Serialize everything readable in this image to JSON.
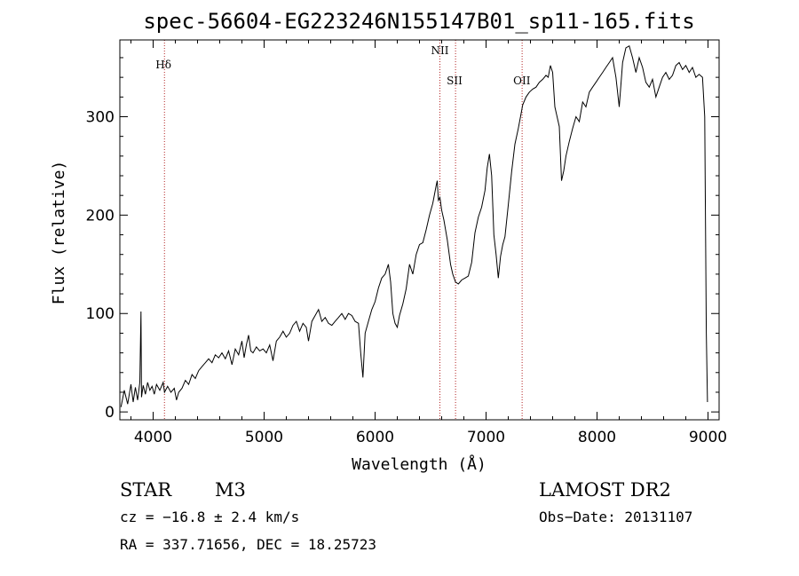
{
  "chart_data": {
    "type": "line",
    "title": "spec-56604-EG223246N155147B01_sp11-165.fits",
    "xlabel": "Wavelength (Å)",
    "ylabel": "Flux (relative)",
    "xlim": [
      3700,
      9100
    ],
    "ylim": [
      -8,
      378
    ],
    "x_ticks": [
      4000,
      5000,
      6000,
      7000,
      8000,
      9000
    ],
    "y_ticks": [
      0,
      100,
      200,
      300
    ],
    "grid": false,
    "line_color": "#000000",
    "marker_color": "#b22222",
    "spectral_lines": [
      {
        "name": "Hδ",
        "wavelength": 4102,
        "label_row": 0
      },
      {
        "name": "NII",
        "wavelength": 6584,
        "label_row": 1
      },
      {
        "name": "SII",
        "wavelength": 6725,
        "label_row": 2
      },
      {
        "name": "OII",
        "wavelength": 7325,
        "label_row": 2
      }
    ],
    "series": [
      {
        "points": [
          [
            3710,
            5
          ],
          [
            3740,
            22
          ],
          [
            3770,
            8
          ],
          [
            3800,
            28
          ],
          [
            3820,
            10
          ],
          [
            3840,
            25
          ],
          [
            3860,
            12
          ],
          [
            3880,
            30
          ],
          [
            3890,
            102
          ],
          [
            3895,
            15
          ],
          [
            3910,
            27
          ],
          [
            3930,
            18
          ],
          [
            3950,
            30
          ],
          [
            3970,
            22
          ],
          [
            3990,
            26
          ],
          [
            4010,
            18
          ],
          [
            4030,
            28
          ],
          [
            4060,
            22
          ],
          [
            4090,
            30
          ],
          [
            4102,
            20
          ],
          [
            4130,
            26
          ],
          [
            4160,
            20
          ],
          [
            4190,
            24
          ],
          [
            4210,
            12
          ],
          [
            4230,
            20
          ],
          [
            4260,
            24
          ],
          [
            4290,
            32
          ],
          [
            4320,
            28
          ],
          [
            4350,
            38
          ],
          [
            4380,
            34
          ],
          [
            4410,
            42
          ],
          [
            4440,
            46
          ],
          [
            4470,
            50
          ],
          [
            4500,
            54
          ],
          [
            4530,
            50
          ],
          [
            4560,
            58
          ],
          [
            4590,
            55
          ],
          [
            4620,
            60
          ],
          [
            4650,
            54
          ],
          [
            4680,
            62
          ],
          [
            4710,
            48
          ],
          [
            4740,
            64
          ],
          [
            4770,
            58
          ],
          [
            4800,
            72
          ],
          [
            4820,
            55
          ],
          [
            4840,
            68
          ],
          [
            4860,
            78
          ],
          [
            4880,
            62
          ],
          [
            4900,
            60
          ],
          [
            4930,
            66
          ],
          [
            4960,
            62
          ],
          [
            4990,
            64
          ],
          [
            5020,
            60
          ],
          [
            5050,
            68
          ],
          [
            5080,
            52
          ],
          [
            5110,
            72
          ],
          [
            5140,
            76
          ],
          [
            5170,
            82
          ],
          [
            5200,
            76
          ],
          [
            5230,
            80
          ],
          [
            5260,
            88
          ],
          [
            5290,
            92
          ],
          [
            5320,
            82
          ],
          [
            5350,
            90
          ],
          [
            5380,
            86
          ],
          [
            5400,
            72
          ],
          [
            5430,
            92
          ],
          [
            5460,
            98
          ],
          [
            5490,
            104
          ],
          [
            5520,
            92
          ],
          [
            5550,
            96
          ],
          [
            5580,
            90
          ],
          [
            5610,
            88
          ],
          [
            5640,
            92
          ],
          [
            5670,
            96
          ],
          [
            5700,
            100
          ],
          [
            5730,
            94
          ],
          [
            5760,
            100
          ],
          [
            5790,
            98
          ],
          [
            5820,
            92
          ],
          [
            5850,
            90
          ],
          [
            5870,
            60
          ],
          [
            5890,
            35
          ],
          [
            5910,
            80
          ],
          [
            5940,
            92
          ],
          [
            5970,
            104
          ],
          [
            6000,
            112
          ],
          [
            6030,
            126
          ],
          [
            6060,
            136
          ],
          [
            6090,
            140
          ],
          [
            6120,
            150
          ],
          [
            6140,
            132
          ],
          [
            6160,
            100
          ],
          [
            6180,
            90
          ],
          [
            6200,
            86
          ],
          [
            6220,
            98
          ],
          [
            6250,
            110
          ],
          [
            6280,
            125
          ],
          [
            6310,
            150
          ],
          [
            6340,
            140
          ],
          [
            6370,
            160
          ],
          [
            6400,
            170
          ],
          [
            6430,
            172
          ],
          [
            6460,
            185
          ],
          [
            6490,
            200
          ],
          [
            6520,
            212
          ],
          [
            6550,
            230
          ],
          [
            6560,
            235
          ],
          [
            6570,
            215
          ],
          [
            6584,
            218
          ],
          [
            6600,
            205
          ],
          [
            6620,
            195
          ],
          [
            6650,
            175
          ],
          [
            6680,
            150
          ],
          [
            6700,
            140
          ],
          [
            6725,
            132
          ],
          [
            6750,
            130
          ],
          [
            6780,
            134
          ],
          [
            6810,
            136
          ],
          [
            6840,
            138
          ],
          [
            6870,
            152
          ],
          [
            6900,
            182
          ],
          [
            6930,
            198
          ],
          [
            6960,
            208
          ],
          [
            6990,
            225
          ],
          [
            7010,
            248
          ],
          [
            7030,
            262
          ],
          [
            7050,
            240
          ],
          [
            7070,
            180
          ],
          [
            7090,
            160
          ],
          [
            7110,
            136
          ],
          [
            7130,
            158
          ],
          [
            7150,
            170
          ],
          [
            7170,
            178
          ],
          [
            7200,
            210
          ],
          [
            7230,
            244
          ],
          [
            7260,
            272
          ],
          [
            7290,
            288
          ],
          [
            7310,
            300
          ],
          [
            7330,
            312
          ],
          [
            7360,
            320
          ],
          [
            7390,
            325
          ],
          [
            7420,
            328
          ],
          [
            7450,
            330
          ],
          [
            7480,
            335
          ],
          [
            7510,
            338
          ],
          [
            7540,
            342
          ],
          [
            7560,
            340
          ],
          [
            7580,
            352
          ],
          [
            7600,
            345
          ],
          [
            7620,
            310
          ],
          [
            7640,
            300
          ],
          [
            7660,
            290
          ],
          [
            7680,
            235
          ],
          [
            7700,
            245
          ],
          [
            7720,
            260
          ],
          [
            7750,
            275
          ],
          [
            7780,
            288
          ],
          [
            7810,
            300
          ],
          [
            7840,
            295
          ],
          [
            7870,
            315
          ],
          [
            7900,
            310
          ],
          [
            7930,
            325
          ],
          [
            7960,
            330
          ],
          [
            7990,
            335
          ],
          [
            8020,
            340
          ],
          [
            8050,
            345
          ],
          [
            8080,
            350
          ],
          [
            8110,
            355
          ],
          [
            8140,
            360
          ],
          [
            8170,
            340
          ],
          [
            8200,
            310
          ],
          [
            8230,
            355
          ],
          [
            8260,
            370
          ],
          [
            8290,
            372
          ],
          [
            8320,
            360
          ],
          [
            8350,
            345
          ],
          [
            8380,
            360
          ],
          [
            8410,
            350
          ],
          [
            8440,
            335
          ],
          [
            8470,
            330
          ],
          [
            8500,
            338
          ],
          [
            8530,
            320
          ],
          [
            8560,
            330
          ],
          [
            8590,
            340
          ],
          [
            8620,
            345
          ],
          [
            8650,
            338
          ],
          [
            8680,
            342
          ],
          [
            8710,
            352
          ],
          [
            8740,
            355
          ],
          [
            8770,
            348
          ],
          [
            8800,
            352
          ],
          [
            8830,
            345
          ],
          [
            8860,
            350
          ],
          [
            8890,
            340
          ],
          [
            8920,
            343
          ],
          [
            8950,
            340
          ],
          [
            8970,
            300
          ],
          [
            8985,
            80
          ],
          [
            8995,
            10
          ]
        ]
      }
    ]
  },
  "info": {
    "object_class": "STAR",
    "subclass": "M3",
    "survey": "LAMOST DR2",
    "redshift": "cz = −16.8 ± 2.4 km/s",
    "obs_date": "Obs−Date: 20131107",
    "coords": "RA = 337.71656, DEC =  18.25723"
  }
}
